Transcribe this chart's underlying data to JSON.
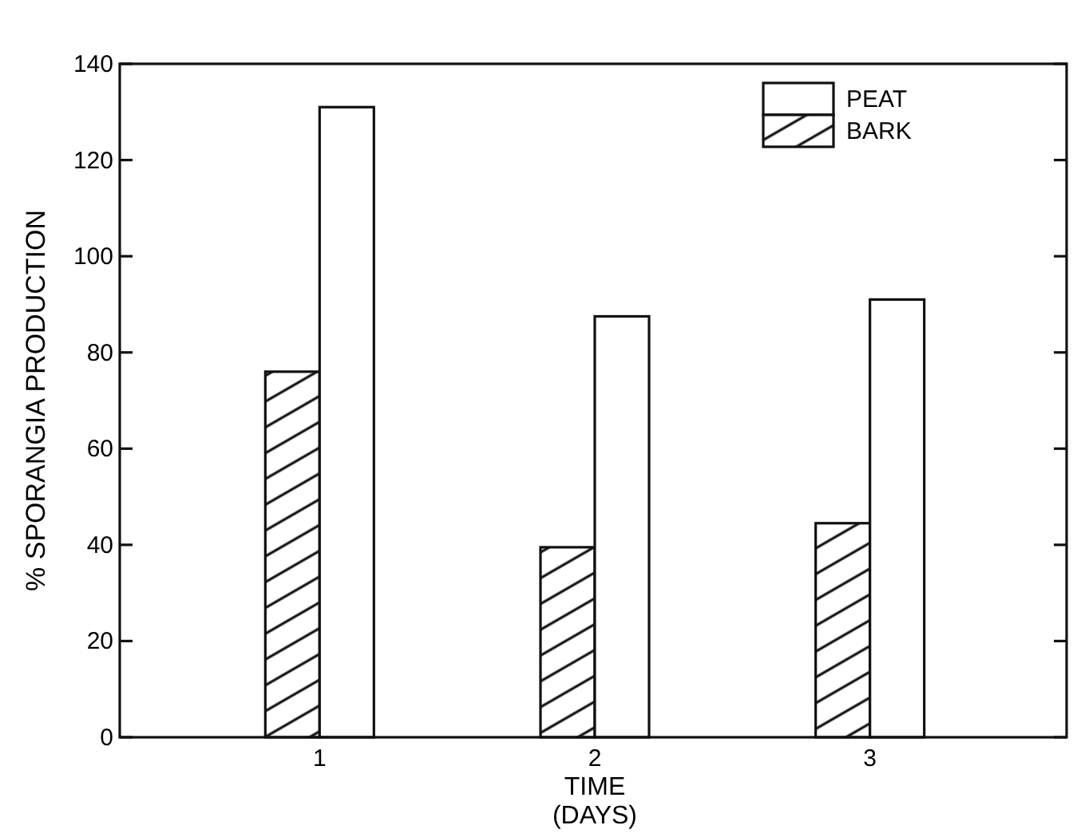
{
  "chart_data": {
    "type": "bar",
    "xlabel": "TIME\n(DAYS)",
    "ylabel": "% SPORANGIA PRODUCTION",
    "categories": [
      "1",
      "2",
      "3"
    ],
    "series": [
      {
        "name": "BARK",
        "color": "#111111",
        "values": [
          76,
          39.5,
          44.5
        ]
      },
      {
        "name": "PEAT",
        "color": "#ffffff",
        "values": [
          131,
          87.5,
          91
        ]
      }
    ],
    "ylim": [
      0,
      140
    ],
    "yticks": [
      0,
      20,
      40,
      60,
      80,
      100,
      120,
      140
    ],
    "grid": false,
    "legend": "top right"
  }
}
